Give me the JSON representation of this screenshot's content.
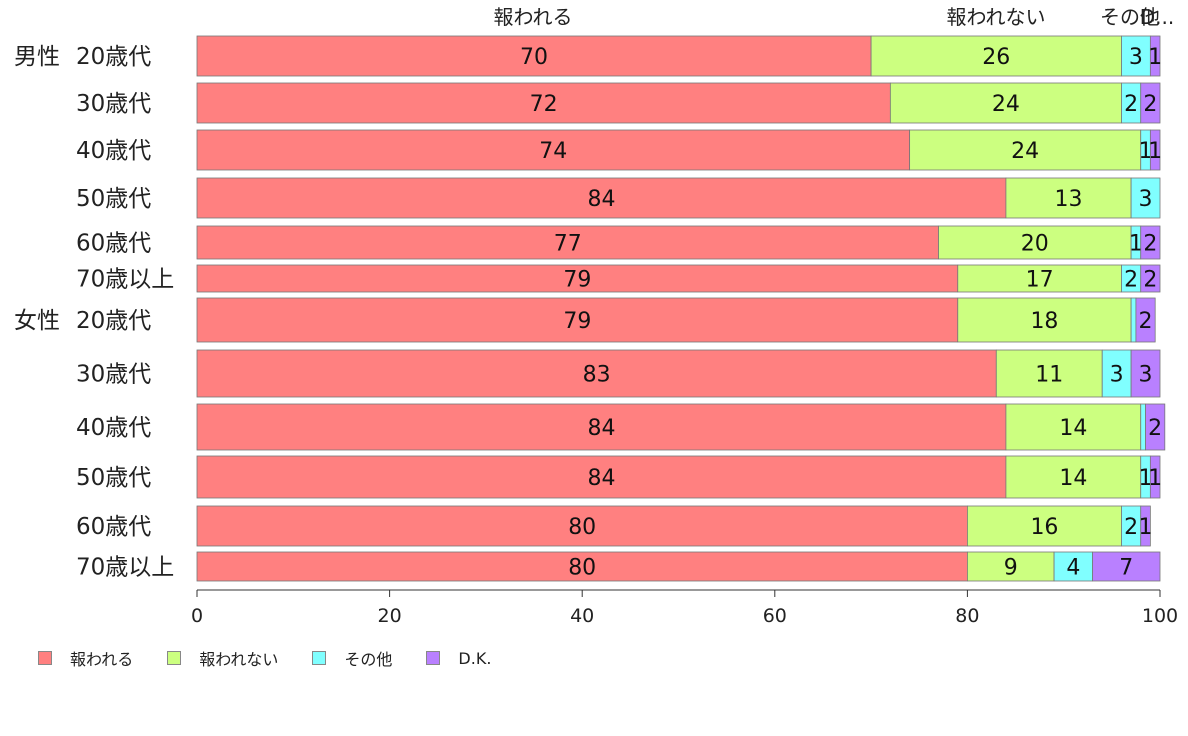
{
  "chart_data": {
    "type": "bar",
    "orientation": "horizontal",
    "stacked": true,
    "title": "",
    "xlabel": "",
    "ylabel": "",
    "xlim": [
      0,
      100
    ],
    "x_ticks": [
      0,
      20,
      40,
      60,
      80,
      100
    ],
    "legend_position": "bottom-left",
    "header_labels": [
      "報われる",
      "報われない",
      "その他",
      "D..."
    ],
    "categories": [
      {
        "group": "男性",
        "label": "20歳代"
      },
      {
        "group": "",
        "label": "30歳代"
      },
      {
        "group": "",
        "label": "40歳代"
      },
      {
        "group": "",
        "label": "50歳代"
      },
      {
        "group": "",
        "label": "60歳代"
      },
      {
        "group": "",
        "label": "70歳以上"
      },
      {
        "group": "女性",
        "label": "20歳代"
      },
      {
        "group": "",
        "label": "30歳代"
      },
      {
        "group": "",
        "label": "40歳代"
      },
      {
        "group": "",
        "label": "50歳代"
      },
      {
        "group": "",
        "label": "60歳代"
      },
      {
        "group": "",
        "label": "70歳以上"
      }
    ],
    "series": [
      {
        "name": "報われる",
        "color": "#ff8080",
        "values": [
          70,
          72,
          74,
          84,
          77,
          79,
          79,
          83,
          84,
          84,
          80,
          80
        ]
      },
      {
        "name": "報われない",
        "color": "#ccff80",
        "values": [
          26,
          24,
          24,
          13,
          20,
          17,
          18,
          11,
          14,
          14,
          16,
          9
        ]
      },
      {
        "name": "その他",
        "color": "#80ffff",
        "values": [
          3,
          2,
          1,
          3,
          1,
          2,
          0.5,
          3,
          0.5,
          1,
          2,
          4
        ]
      },
      {
        "name": "D.K.",
        "color": "#b980ff",
        "values": [
          1,
          2,
          1,
          0,
          2,
          2,
          2,
          3,
          2,
          1,
          1,
          7
        ]
      }
    ],
    "value_labels": [
      [
        "70",
        "26",
        "3",
        "1"
      ],
      [
        "72",
        "24",
        "2",
        "2"
      ],
      [
        "74",
        "24",
        "1",
        "1"
      ],
      [
        "84",
        "13",
        "3",
        ""
      ],
      [
        "77",
        "20",
        "1",
        "2"
      ],
      [
        "79",
        "17",
        "2",
        "2"
      ],
      [
        "79",
        "18",
        "",
        "2"
      ],
      [
        "83",
        "11",
        "3",
        "3"
      ],
      [
        "84",
        "14",
        "",
        "2"
      ],
      [
        "84",
        "14",
        "1",
        "1"
      ],
      [
        "80",
        "16",
        "2",
        "1"
      ],
      [
        "80",
        "9",
        "4",
        "7"
      ]
    ]
  }
}
